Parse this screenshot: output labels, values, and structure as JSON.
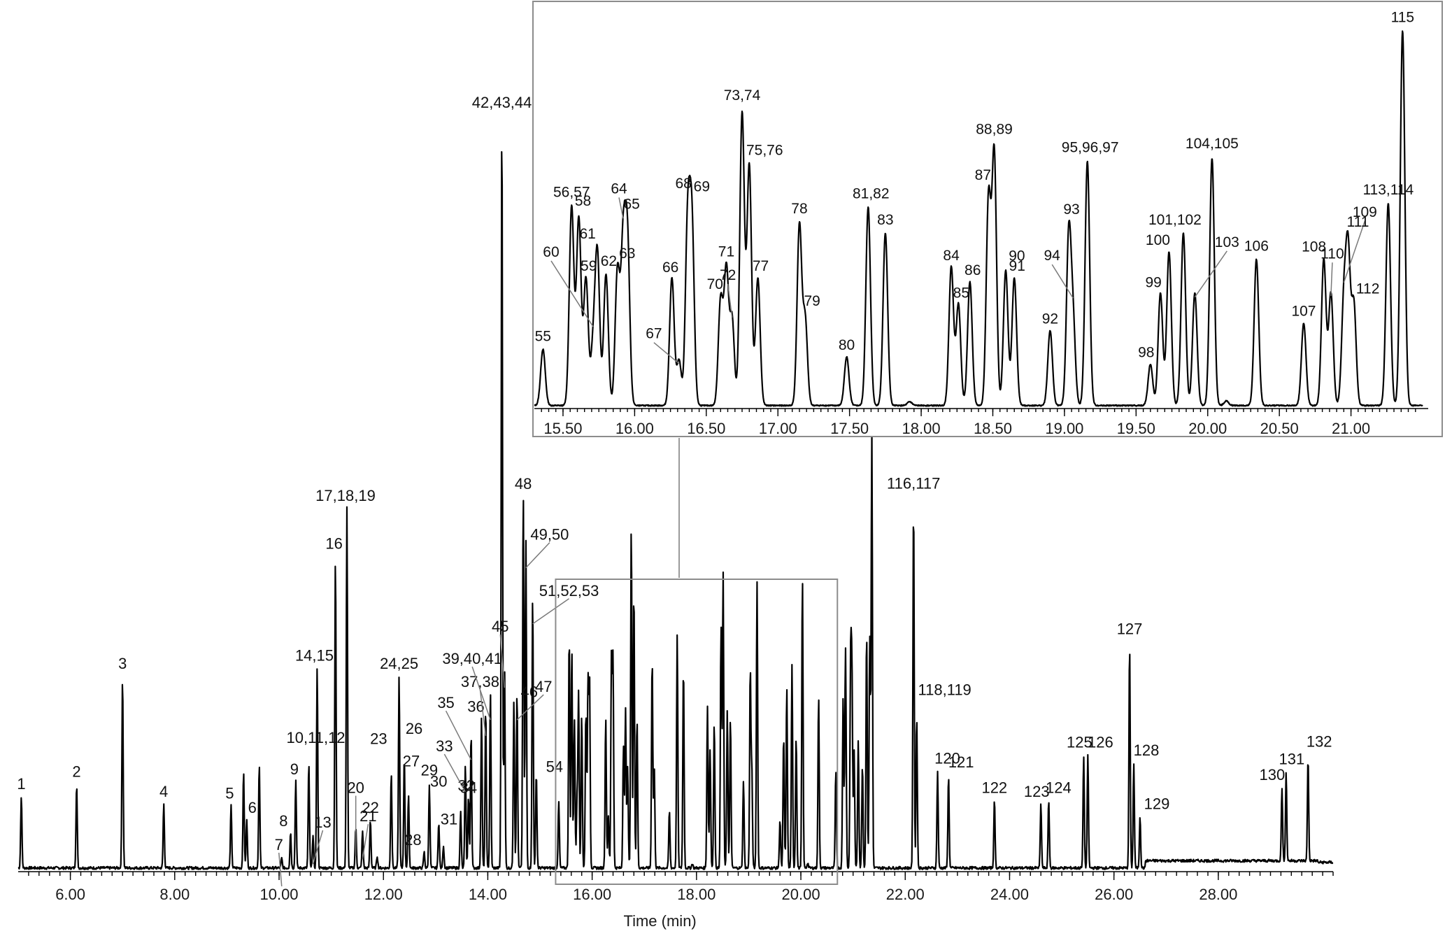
{
  "chart_data": [
    {
      "type": "line",
      "subtype": "chromatogram",
      "title": "",
      "xlabel": "Time (min)",
      "ylabel": "",
      "xlim": [
        5.0,
        30.2
      ],
      "ylim": [
        0,
        100
      ],
      "x_ticks": [
        6,
        8,
        10,
        12,
        14,
        16,
        18,
        20,
        22,
        24,
        26,
        28
      ],
      "x_tick_labels": [
        "6.00",
        "8.00",
        "10.00",
        "12.00",
        "14.00",
        "16.00",
        "18.00",
        "20.00",
        "22.00",
        "24.00",
        "26.00",
        "28.00"
      ],
      "zoom_region": [
        15.3,
        20.7
      ],
      "grid": false,
      "legend": "none",
      "peaks": [
        {
          "label": "1",
          "t": 5.06,
          "h": 9.0
        },
        {
          "label": "2",
          "t": 6.12,
          "h": 10.5
        },
        {
          "label": "3",
          "t": 7.0,
          "h": 24.0
        },
        {
          "label": "4",
          "t": 7.79,
          "h": 8.0
        },
        {
          "label": "5",
          "t": 9.08,
          "h": 7.8
        },
        {
          "label": "",
          "t": 9.32,
          "h": 12.0
        },
        {
          "label": "6",
          "t": 9.38,
          "h": 6.0
        },
        {
          "label": "",
          "t": 9.62,
          "h": 13.0
        },
        {
          "label": "7",
          "t": 10.05,
          "h": 1.2
        },
        {
          "label": "8",
          "t": 10.22,
          "h": 4.5
        },
        {
          "label": "9",
          "t": 10.32,
          "h": 11.0
        },
        {
          "label": "10,11,12",
          "t": 10.57,
          "h": 13.0
        },
        {
          "label": "13",
          "t": 10.65,
          "h": 4.0
        },
        {
          "label": "14,15",
          "t": 10.73,
          "h": 25.0
        },
        {
          "label": "16",
          "t": 11.08,
          "h": 39.0
        },
        {
          "label": "17,18,19",
          "t": 11.3,
          "h": 45.0
        },
        {
          "label": "20",
          "t": 11.47,
          "h": 5.0
        },
        {
          "label": "21",
          "t": 11.6,
          "h": 4.6
        },
        {
          "label": "22",
          "t": 11.75,
          "h": 6.0
        },
        {
          "label": "",
          "t": 11.88,
          "h": 1.5
        },
        {
          "label": "23",
          "t": 12.15,
          "h": 12.0
        },
        {
          "label": "24,25",
          "t": 12.3,
          "h": 24.0
        },
        {
          "label": "26",
          "t": 12.4,
          "h": 13.8
        },
        {
          "label": "27",
          "t": 12.48,
          "h": 9.2
        },
        {
          "label": "28",
          "t": 12.78,
          "h": 2.0
        },
        {
          "label": "29",
          "t": 12.88,
          "h": 10.5
        },
        {
          "label": "30",
          "t": 13.06,
          "h": 5.8
        },
        {
          "label": "31",
          "t": 13.15,
          "h": 2.8
        },
        {
          "label": "32",
          "t": 13.48,
          "h": 7.0
        },
        {
          "label": "33",
          "t": 13.57,
          "h": 13.0
        },
        {
          "label": "34",
          "t": 13.63,
          "h": 9.0
        },
        {
          "label": "35",
          "t": 13.68,
          "h": 17.0
        },
        {
          "label": "36",
          "t": 13.88,
          "h": 19.0
        },
        {
          "label": "37,38",
          "t": 13.96,
          "h": 20.0
        },
        {
          "label": "39,40,41",
          "t": 14.05,
          "h": 22.0
        },
        {
          "label": "42,43,44",
          "t": 14.27,
          "h": 95.0
        },
        {
          "label": "45",
          "t": 14.32,
          "h": 26.0
        },
        {
          "label": "46",
          "t": 14.5,
          "h": 21.0
        },
        {
          "label": "47",
          "t": 14.56,
          "h": 22.0
        },
        {
          "label": "48",
          "t": 14.68,
          "h": 47.0
        },
        {
          "label": "49,50",
          "t": 14.73,
          "h": 41.0
        },
        {
          "label": "51,52,53",
          "t": 14.86,
          "h": 34.0
        },
        {
          "label": "54",
          "t": 14.93,
          "h": 12.0
        },
        {
          "label": "",
          "t": 20.85,
          "h": 13.5
        },
        {
          "label": "",
          "t": 20.96,
          "h": 14.0
        },
        {
          "label": "",
          "t": 21.1,
          "h": 16.0
        },
        {
          "label": "",
          "t": 21.18,
          "h": 13.0
        },
        {
          "label": "",
          "t": 21.32,
          "h": 29.0
        },
        {
          "label": "116,117",
          "t": 22.16,
          "h": 46.0
        },
        {
          "label": "118,119",
          "t": 22.22,
          "h": 19.0
        },
        {
          "label": "120",
          "t": 22.62,
          "h": 12.0
        },
        {
          "label": "121",
          "t": 22.83,
          "h": 11.5
        },
        {
          "label": "122",
          "t": 23.71,
          "h": 8.5
        },
        {
          "label": "123",
          "t": 24.6,
          "h": 8.0
        },
        {
          "label": "124",
          "t": 24.75,
          "h": 8.5
        },
        {
          "label": "125",
          "t": 25.42,
          "h": 14.0
        },
        {
          "label": "126",
          "t": 25.5,
          "h": 14.0
        },
        {
          "label": "127",
          "t": 26.3,
          "h": 28.0
        },
        {
          "label": "128",
          "t": 26.38,
          "h": 13.0
        },
        {
          "label": "129",
          "t": 26.5,
          "h": 6.5
        },
        {
          "label": "130",
          "t": 29.22,
          "h": 9.2
        },
        {
          "label": "131",
          "t": 29.3,
          "h": 11.0
        },
        {
          "label": "132",
          "t": 29.72,
          "h": 13.0
        }
      ]
    },
    {
      "type": "line",
      "subtype": "chromatogram-inset",
      "title": "",
      "xlabel": "",
      "ylabel": "",
      "xlim": [
        15.3,
        21.5
      ],
      "ylim": [
        0,
        100
      ],
      "x_ticks": [
        15.5,
        16.0,
        16.5,
        17.0,
        17.5,
        18.0,
        18.5,
        19.0,
        19.5,
        20.0,
        20.5,
        21.0
      ],
      "x_tick_labels": [
        "15.50",
        "16.00",
        "16.50",
        "17.00",
        "17.50",
        "18.00",
        "18.50",
        "19.00",
        "19.50",
        "20.00",
        "20.50",
        "21.00"
      ],
      "grid": false,
      "legend": "none",
      "peaks": [
        {
          "label": "55",
          "t": 15.36,
          "h": 15.0
        },
        {
          "label": "56,57",
          "t": 15.56,
          "h": 53.0
        },
        {
          "label": "58",
          "t": 15.61,
          "h": 50.0
        },
        {
          "label": "59",
          "t": 15.66,
          "h": 34.0
        },
        {
          "label": "60",
          "t": 15.71,
          "h": 15.0
        },
        {
          "label": "61",
          "t": 15.74,
          "h": 40.0
        },
        {
          "label": "62",
          "t": 15.8,
          "h": 35.0
        },
        {
          "label": "63",
          "t": 15.88,
          "h": 36.0
        },
        {
          "label": "64",
          "t": 15.92,
          "h": 42.0
        },
        {
          "label": "65",
          "t": 15.95,
          "h": 43.0
        },
        {
          "label": "66",
          "t": 16.26,
          "h": 34.0
        },
        {
          "label": "67",
          "t": 16.31,
          "h": 12.0
        },
        {
          "label": "68",
          "t": 16.37,
          "h": 48.0
        },
        {
          "label": "69",
          "t": 16.4,
          "h": 47.0
        },
        {
          "label": "70",
          "t": 16.6,
          "h": 28.0
        },
        {
          "label": "71",
          "t": 16.64,
          "h": 36.0
        },
        {
          "label": "72",
          "t": 16.68,
          "h": 23.0
        },
        {
          "label": "73,74",
          "t": 16.75,
          "h": 78.0
        },
        {
          "label": "75,76",
          "t": 16.8,
          "h": 64.0
        },
        {
          "label": "77",
          "t": 16.86,
          "h": 34.0
        },
        {
          "label": "78",
          "t": 17.15,
          "h": 48.0
        },
        {
          "label": "79",
          "t": 17.19,
          "h": 23.0
        },
        {
          "label": "80",
          "t": 17.48,
          "h": 13.0
        },
        {
          "label": "81,82",
          "t": 17.63,
          "h": 53.0
        },
        {
          "label": "83",
          "t": 17.75,
          "h": 46.0
        },
        {
          "label": "",
          "t": 17.92,
          "h": 1.0
        },
        {
          "label": "84",
          "t": 18.21,
          "h": 37.0
        },
        {
          "label": "85",
          "t": 18.26,
          "h": 27.0
        },
        {
          "label": "86",
          "t": 18.34,
          "h": 33.0
        },
        {
          "label": "87",
          "t": 18.47,
          "h": 55.0
        },
        {
          "label": "88,89",
          "t": 18.51,
          "h": 67.0
        },
        {
          "label": "90",
          "t": 18.59,
          "h": 36.0
        },
        {
          "label": "91",
          "t": 18.65,
          "h": 34.0
        },
        {
          "label": "92",
          "t": 18.9,
          "h": 20.0
        },
        {
          "label": "93",
          "t": 19.03,
          "h": 45.0
        },
        {
          "label": "94",
          "t": 19.06,
          "h": 22.0
        },
        {
          "label": "95,96,97",
          "t": 19.16,
          "h": 65.0
        },
        {
          "label": "98",
          "t": 19.6,
          "h": 11.0
        },
        {
          "label": "99",
          "t": 19.67,
          "h": 30.0
        },
        {
          "label": "100",
          "t": 19.73,
          "h": 41.0
        },
        {
          "label": "101,102",
          "t": 19.83,
          "h": 46.0
        },
        {
          "label": "103",
          "t": 19.91,
          "h": 30.0
        },
        {
          "label": "104,105",
          "t": 20.03,
          "h": 66.0
        },
        {
          "label": "",
          "t": 20.13,
          "h": 1.2
        },
        {
          "label": "106",
          "t": 20.34,
          "h": 39.0
        },
        {
          "label": "107",
          "t": 20.67,
          "h": 22.0
        },
        {
          "label": "108",
          "t": 20.81,
          "h": 39.0
        },
        {
          "label": "110",
          "t": 20.86,
          "h": 30.0
        },
        {
          "label": "109",
          "t": 20.95,
          "h": 27.0
        },
        {
          "label": "111",
          "t": 20.98,
          "h": 40.0
        },
        {
          "label": "112",
          "t": 21.02,
          "h": 27.0
        },
        {
          "label": "113,114",
          "t": 21.26,
          "h": 54.0
        },
        {
          "label": "115",
          "t": 21.36,
          "h": 100.0
        }
      ]
    }
  ]
}
